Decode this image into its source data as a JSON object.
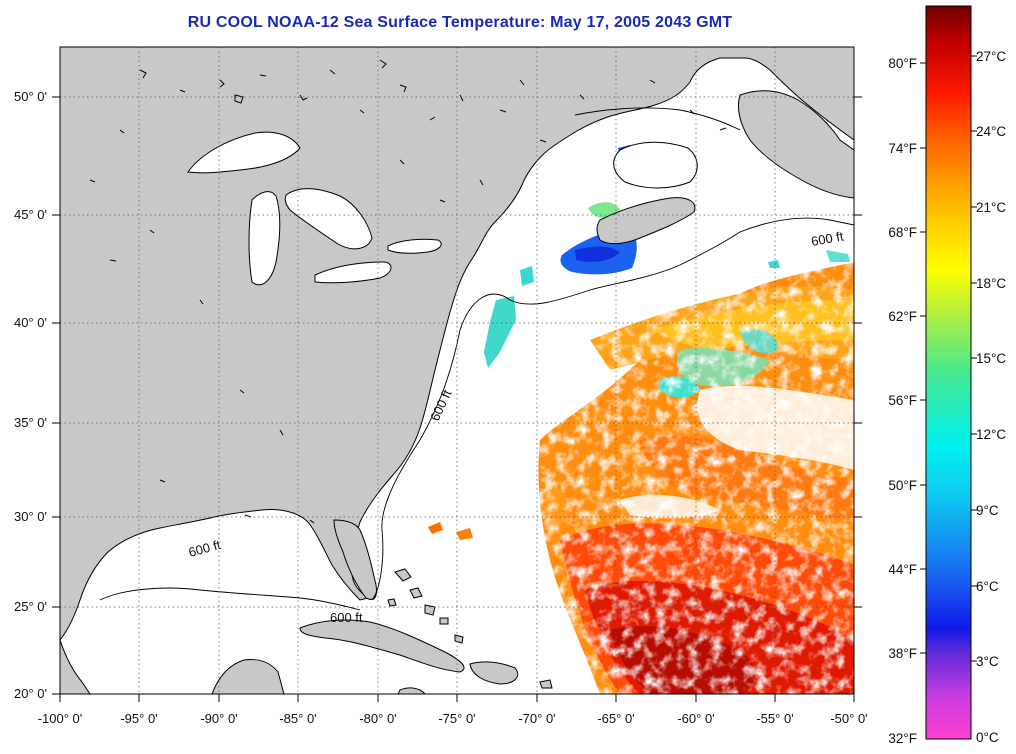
{
  "title": "RU COOL  NOAA-12  Sea Surface Temperature:  May 17, 2005 2043 GMT",
  "map": {
    "lon_ticks": [
      "-100° 0'",
      "-95° 0'",
      "-90° 0'",
      "-85° 0'",
      "-80° 0'",
      "-75° 0'",
      "-70° 0'",
      "-65° 0'",
      "-60° 0'",
      "-55° 0'",
      "-50° 0'"
    ],
    "lat_ticks": [
      "50° 0'",
      "45° 0'",
      "40° 0'",
      "35° 0'",
      "30° 0'",
      "25° 0'",
      "20° 0'"
    ],
    "lon_range": [
      -100,
      -50
    ],
    "lat_range": [
      20,
      52
    ],
    "land_color": "#c8c8c8",
    "ocean_color": "#ffffff",
    "isobath_label": "600 ft"
  },
  "colorbar": {
    "fahrenheit_labels": [
      "80°F",
      "74°F",
      "68°F",
      "62°F",
      "56°F",
      "50°F",
      "44°F",
      "38°F",
      "32°F"
    ],
    "celsius_labels": [
      "27°C",
      "24°C",
      "21°C",
      "18°C",
      "15°C",
      "12°C",
      "9°C",
      "6°C",
      "3°C",
      "0°C"
    ],
    "colors": [
      "#ff3fd2",
      "#9a37e0",
      "#2a1fd8",
      "#1a6cf0",
      "#00e0ff",
      "#48e890",
      "#c8ef2a",
      "#ffe000",
      "#ff9a00",
      "#ff3000",
      "#c80000",
      "#7a0000"
    ]
  }
}
